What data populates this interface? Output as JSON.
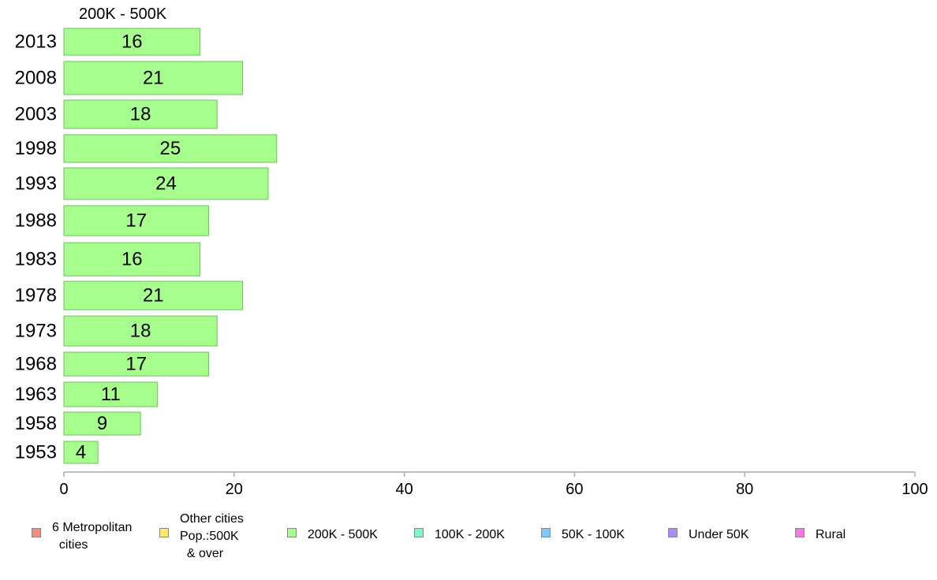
{
  "chart_data": {
    "type": "bar",
    "orientation": "horizontal",
    "title": "200K - 500K",
    "categories": [
      "2013",
      "2008",
      "2003",
      "1998",
      "1993",
      "1988",
      "1983",
      "1978",
      "1973",
      "1968",
      "1963",
      "1958",
      "1953"
    ],
    "values": [
      16,
      21,
      18,
      25,
      24,
      17,
      16,
      21,
      18,
      17,
      11,
      9,
      4
    ],
    "value_labels": [
      "16",
      "21",
      "18",
      "25",
      "24",
      "17",
      "16",
      "21",
      "18",
      "17",
      "11",
      "9",
      "4"
    ],
    "xlim": [
      0,
      100
    ],
    "x_ticks": [
      "0",
      "20",
      "40",
      "60",
      "80",
      "100"
    ],
    "grid": false,
    "bar_color": "#a6ff8c",
    "bar_border_color": "#6cbf5c",
    "legend_position": "bottom",
    "legend": [
      {
        "label": "6 Metropolitan\n  cities",
        "color": "#f28b82"
      },
      {
        "label": "Other cities\nPop.:500K\n  & over",
        "color": "#fde86a"
      },
      {
        "label": "200K - 500K",
        "color": "#a6ff8c"
      },
      {
        "label": "100K - 200K",
        "color": "#7ff5c8"
      },
      {
        "label": "50K - 100K",
        "color": "#7ec8ff"
      },
      {
        "label": "Under 50K",
        "color": "#a98cf5"
      },
      {
        "label": "Rural",
        "color": "#f57ae6"
      }
    ]
  }
}
